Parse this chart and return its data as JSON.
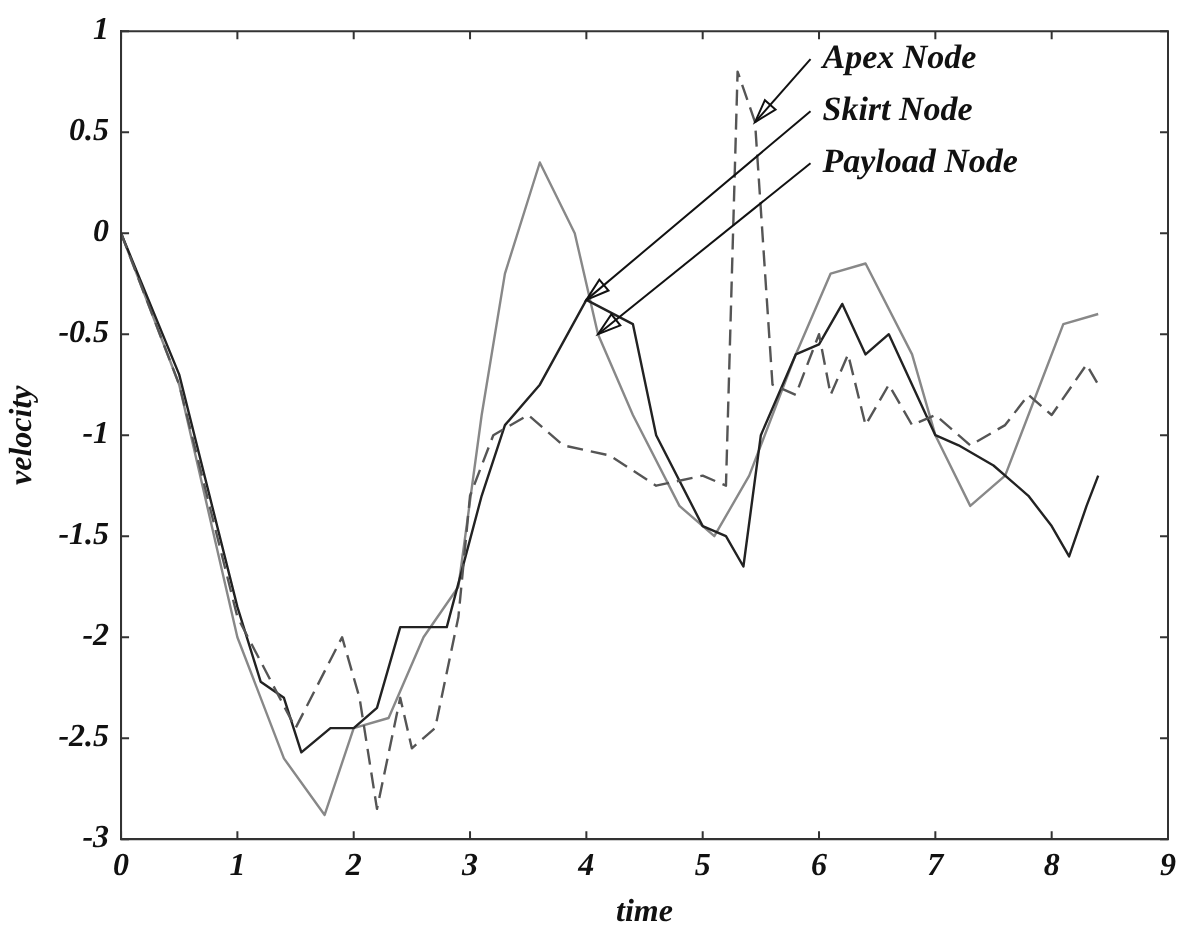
{
  "chart_data": {
    "type": "line",
    "xlabel": "time",
    "ylabel": "velocity",
    "xlim": [
      0,
      9
    ],
    "xticks": [
      0,
      1,
      2,
      3,
      4,
      5,
      6,
      7,
      8,
      9
    ],
    "ylim": [
      -3,
      1
    ],
    "yticks": [
      -3,
      -2.5,
      -2,
      -1.5,
      -1,
      -0.5,
      0,
      0.5,
      1
    ],
    "grid": false,
    "legend": false,
    "marker": "none",
    "series": [
      {
        "color": "#555555",
        "line_style": "dashed",
        "x": [
          0,
          0.5,
          1,
          1.5,
          1.9,
          2.05,
          2.2,
          2.4,
          2.5,
          2.7,
          2.9,
          3.0,
          3.2,
          3.5,
          3.8,
          4.2,
          4.6,
          5.0,
          5.2,
          5.3,
          5.45,
          5.6,
          5.8,
          6.0,
          6.1,
          6.25,
          6.4,
          6.6,
          6.8,
          7.0,
          7.3,
          7.6,
          7.8,
          8.0,
          8.3,
          8.4
        ],
        "values": [
          0,
          -0.75,
          -1.9,
          -2.45,
          -2.0,
          -2.3,
          -2.85,
          -2.3,
          -2.55,
          -2.45,
          -1.9,
          -1.3,
          -1.0,
          -0.9,
          -1.05,
          -1.1,
          -1.25,
          -1.2,
          -1.25,
          0.8,
          0.55,
          -0.75,
          -0.8,
          -0.5,
          -0.8,
          -0.6,
          -0.95,
          -0.75,
          -0.95,
          -0.9,
          -1.05,
          -0.95,
          -0.8,
          -0.9,
          -0.65,
          -0.75
        ]
      },
      {
        "color": "#222222",
        "line_style": "solid",
        "x": [
          0,
          0.5,
          1,
          1.2,
          1.4,
          1.55,
          1.8,
          2.0,
          2.2,
          2.4,
          2.8,
          3.1,
          3.3,
          3.6,
          4.0,
          4.4,
          4.6,
          5.0,
          5.2,
          5.35,
          5.5,
          5.8,
          6.0,
          6.2,
          6.4,
          6.6,
          6.8,
          7.0,
          7.2,
          7.5,
          7.8,
          8.0,
          8.15,
          8.3,
          8.4
        ],
        "values": [
          0,
          -0.7,
          -1.85,
          -2.22,
          -2.3,
          -2.57,
          -2.45,
          -2.45,
          -2.35,
          -1.95,
          -1.95,
          -1.3,
          -0.95,
          -0.75,
          -0.33,
          -0.45,
          -1.0,
          -1.45,
          -1.5,
          -1.65,
          -1.0,
          -0.6,
          -0.55,
          -0.35,
          -0.6,
          -0.5,
          -0.75,
          -1.0,
          -1.05,
          -1.15,
          -1.3,
          -1.45,
          -1.6,
          -1.35,
          -1.2
        ]
      },
      {
        "color": "#888888",
        "line_style": "solid",
        "x": [
          0,
          0.5,
          1,
          1.4,
          1.75,
          2.0,
          2.3,
          2.6,
          2.9,
          3.1,
          3.3,
          3.6,
          3.9,
          4.1,
          4.4,
          4.8,
          5.1,
          5.4,
          5.8,
          6.1,
          6.4,
          6.8,
          7.0,
          7.3,
          7.6,
          7.9,
          8.1,
          8.4
        ],
        "values": [
          0,
          -0.75,
          -2.0,
          -2.6,
          -2.88,
          -2.45,
          -2.4,
          -2.0,
          -1.75,
          -0.9,
          -0.2,
          0.35,
          0.0,
          -0.5,
          -0.9,
          -1.35,
          -1.5,
          -1.2,
          -0.6,
          -0.2,
          -0.15,
          -0.6,
          -1.0,
          -1.35,
          -1.2,
          -0.75,
          -0.45,
          -0.4
        ]
      }
    ],
    "annotations": [
      {
        "text": "Apex Node",
        "x": 5.45,
        "y": 0.55
      },
      {
        "text": "Skirt Node",
        "x": 4.0,
        "y": -0.33
      },
      {
        "text": "Payload Node",
        "x": 4.1,
        "y": -0.5
      }
    ]
  }
}
